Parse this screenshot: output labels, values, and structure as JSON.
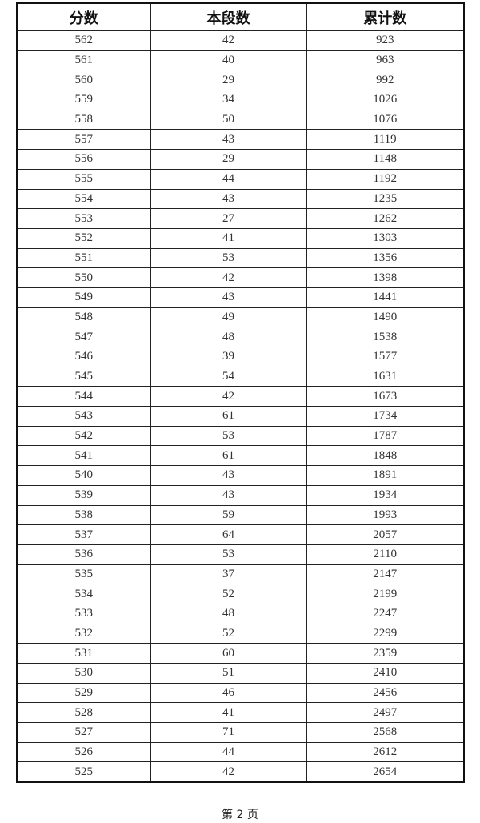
{
  "table": {
    "headers": [
      "分数",
      "本段数",
      "累计数"
    ],
    "rows": [
      [
        "562",
        "42",
        "923"
      ],
      [
        "561",
        "40",
        "963"
      ],
      [
        "560",
        "29",
        "992"
      ],
      [
        "559",
        "34",
        "1026"
      ],
      [
        "558",
        "50",
        "1076"
      ],
      [
        "557",
        "43",
        "1119"
      ],
      [
        "556",
        "29",
        "1148"
      ],
      [
        "555",
        "44",
        "1192"
      ],
      [
        "554",
        "43",
        "1235"
      ],
      [
        "553",
        "27",
        "1262"
      ],
      [
        "552",
        "41",
        "1303"
      ],
      [
        "551",
        "53",
        "1356"
      ],
      [
        "550",
        "42",
        "1398"
      ],
      [
        "549",
        "43",
        "1441"
      ],
      [
        "548",
        "49",
        "1490"
      ],
      [
        "547",
        "48",
        "1538"
      ],
      [
        "546",
        "39",
        "1577"
      ],
      [
        "545",
        "54",
        "1631"
      ],
      [
        "544",
        "42",
        "1673"
      ],
      [
        "543",
        "61",
        "1734"
      ],
      [
        "542",
        "53",
        "1787"
      ],
      [
        "541",
        "61",
        "1848"
      ],
      [
        "540",
        "43",
        "1891"
      ],
      [
        "539",
        "43",
        "1934"
      ],
      [
        "538",
        "59",
        "1993"
      ],
      [
        "537",
        "64",
        "2057"
      ],
      [
        "536",
        "53",
        "2110"
      ],
      [
        "535",
        "37",
        "2147"
      ],
      [
        "534",
        "52",
        "2199"
      ],
      [
        "533",
        "48",
        "2247"
      ],
      [
        "532",
        "52",
        "2299"
      ],
      [
        "531",
        "60",
        "2359"
      ],
      [
        "530",
        "51",
        "2410"
      ],
      [
        "529",
        "46",
        "2456"
      ],
      [
        "528",
        "41",
        "2497"
      ],
      [
        "527",
        "71",
        "2568"
      ],
      [
        "526",
        "44",
        "2612"
      ],
      [
        "525",
        "42",
        "2654"
      ]
    ]
  },
  "footer": {
    "page_label": "第 2 页"
  }
}
